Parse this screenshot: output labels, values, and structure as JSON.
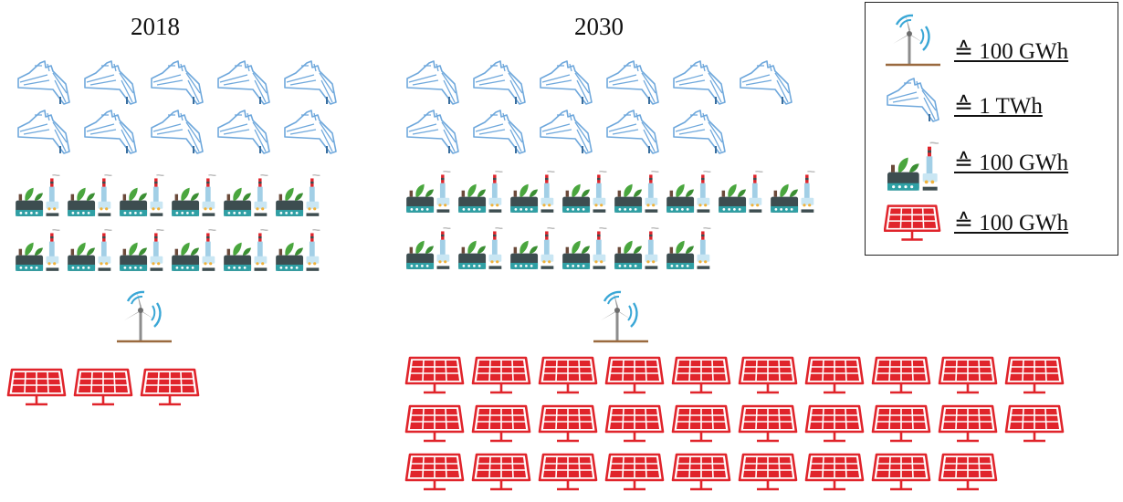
{
  "years": [
    {
      "label": "2018",
      "hydro": 10,
      "biomass": 12,
      "wind": 1,
      "solar": 3
    },
    {
      "label": "2030",
      "hydro": 11,
      "biomass": 14,
      "wind": 1,
      "solar": 29
    }
  ],
  "legend": {
    "items": [
      {
        "icon": "wind-turbine-icon",
        "label": "≙ 100 GWh"
      },
      {
        "icon": "hydro-dam-icon",
        "label": "≙ 1 TWh"
      },
      {
        "icon": "biomass-plant-icon",
        "label": "≙ 100 GWh"
      },
      {
        "icon": "solar-panel-icon",
        "label": "≙ 100 GWh"
      }
    ]
  },
  "colors": {
    "hydro": "#6fa8dc",
    "solar": "#e0242b",
    "wind_arcs": "#3aa7d6",
    "wind_blades": "#8d8d8d",
    "ground": "#9a6a3f",
    "biomass_base": "#3d4d50",
    "biomass_teal": "#2fa0a5",
    "leaf": "#4aa63e"
  }
}
